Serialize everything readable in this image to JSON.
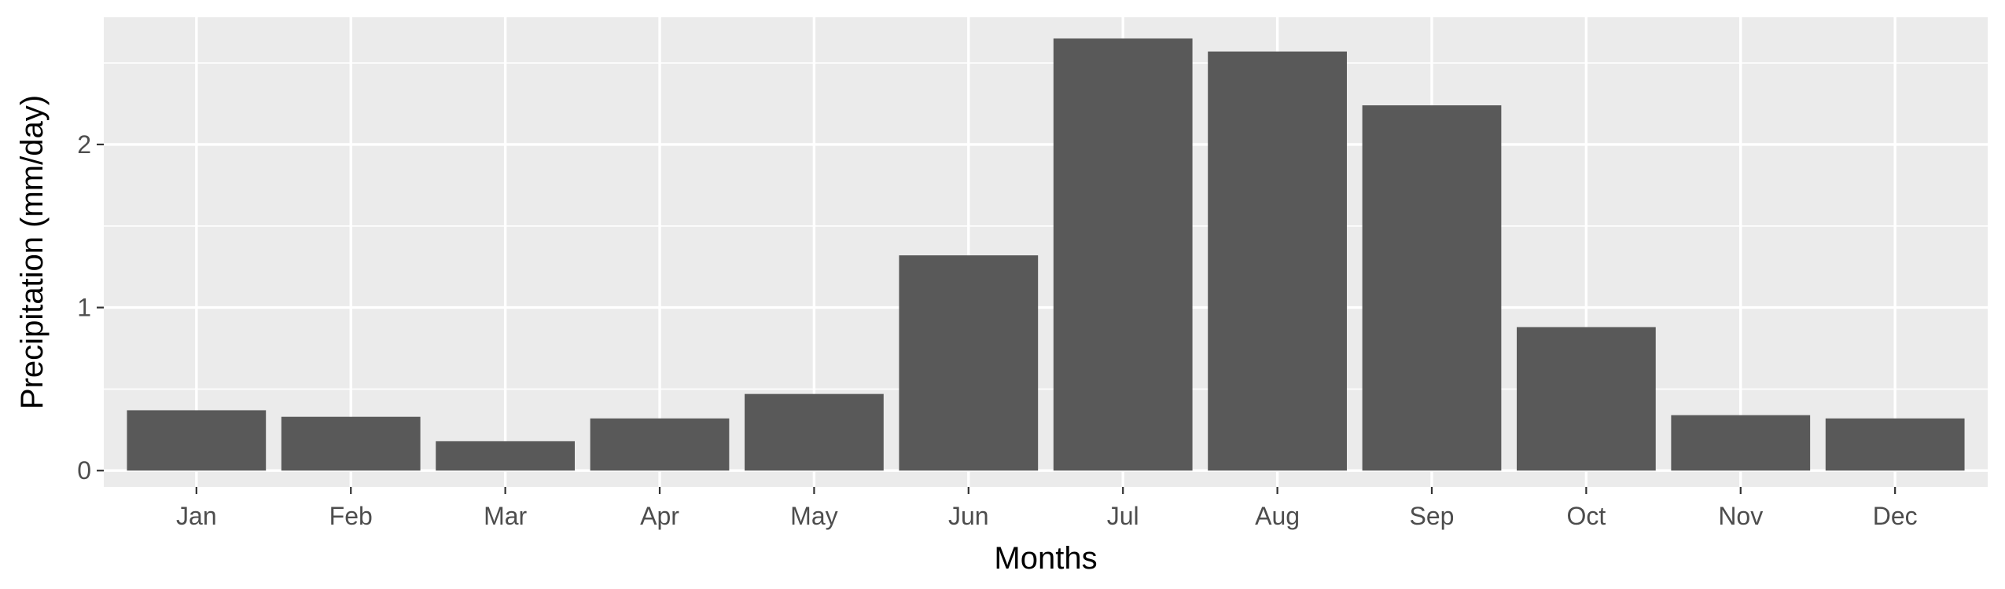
{
  "chart_data": {
    "type": "bar",
    "title": "",
    "xlabel": "Months",
    "ylabel": "Precipitation (mm/day)",
    "categories": [
      "Jan",
      "Feb",
      "Mar",
      "Apr",
      "May",
      "Jun",
      "Jul",
      "Aug",
      "Sep",
      "Oct",
      "Nov",
      "Dec"
    ],
    "values": [
      0.37,
      0.33,
      0.18,
      0.32,
      0.47,
      1.32,
      2.65,
      2.57,
      2.24,
      0.88,
      0.34,
      0.32
    ],
    "ylim": [
      -0.1,
      2.78
    ],
    "y_ticks": [
      0,
      1,
      2
    ],
    "y_tick_labels": [
      "0",
      "1",
      "2"
    ],
    "grid": true,
    "legend": "none",
    "colors": {
      "panel_background": "#ebebeb",
      "grid": "#ffffff",
      "bar_fill": "#595959",
      "tick_text": "#4d4d4d",
      "tick_mark": "#333333",
      "title_text": "#000000"
    }
  }
}
